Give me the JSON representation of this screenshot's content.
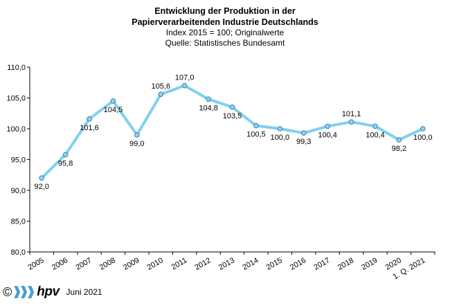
{
  "chart_data": {
    "type": "line",
    "title_lines": [
      "Entwicklung der Produktion in der",
      "Papierverarbeitenden Industrie Deutschlands"
    ],
    "subtitle_lines": [
      "Index 2015 = 100; Originalwerte",
      "Quelle: Statistisches Bundesamt"
    ],
    "categories": [
      "2005",
      "2006",
      "2007",
      "2008",
      "2009",
      "2010",
      "2011",
      "2012",
      "2013",
      "2014",
      "2015",
      "2016",
      "2017",
      "2018",
      "2019",
      "2020",
      "1. Q. 2021"
    ],
    "values": [
      92.0,
      95.8,
      101.6,
      104.5,
      99.0,
      105.6,
      107.0,
      104.8,
      103.5,
      100.5,
      100.0,
      99.3,
      100.4,
      101.1,
      100.4,
      98.2,
      100.0
    ],
    "data_labels": [
      "92,0",
      "95,8",
      "101,6",
      "104,5",
      "99,0",
      "105,6",
      "107,0",
      "104,8",
      "103,5",
      "100,5",
      "100,0",
      "99,3",
      "100,4",
      "101,1",
      "100,4",
      "98,2",
      "100,0"
    ],
    "y_ticks": [
      80,
      85,
      90,
      95,
      100,
      105,
      110
    ],
    "y_tick_labels": [
      "80,0",
      "85,0",
      "90,0",
      "95,0",
      "100,0",
      "105,0",
      "110,0"
    ],
    "ylim": [
      80,
      110
    ],
    "grid": false,
    "line_color": "#7fd0ef",
    "marker_color": "#8fd3f0",
    "marker_stroke": "#3a7fb0"
  },
  "footer": {
    "copyright": "©",
    "logo_text": "hpv",
    "logo_color": "#4a9fd5",
    "date": "Juni 2021"
  }
}
